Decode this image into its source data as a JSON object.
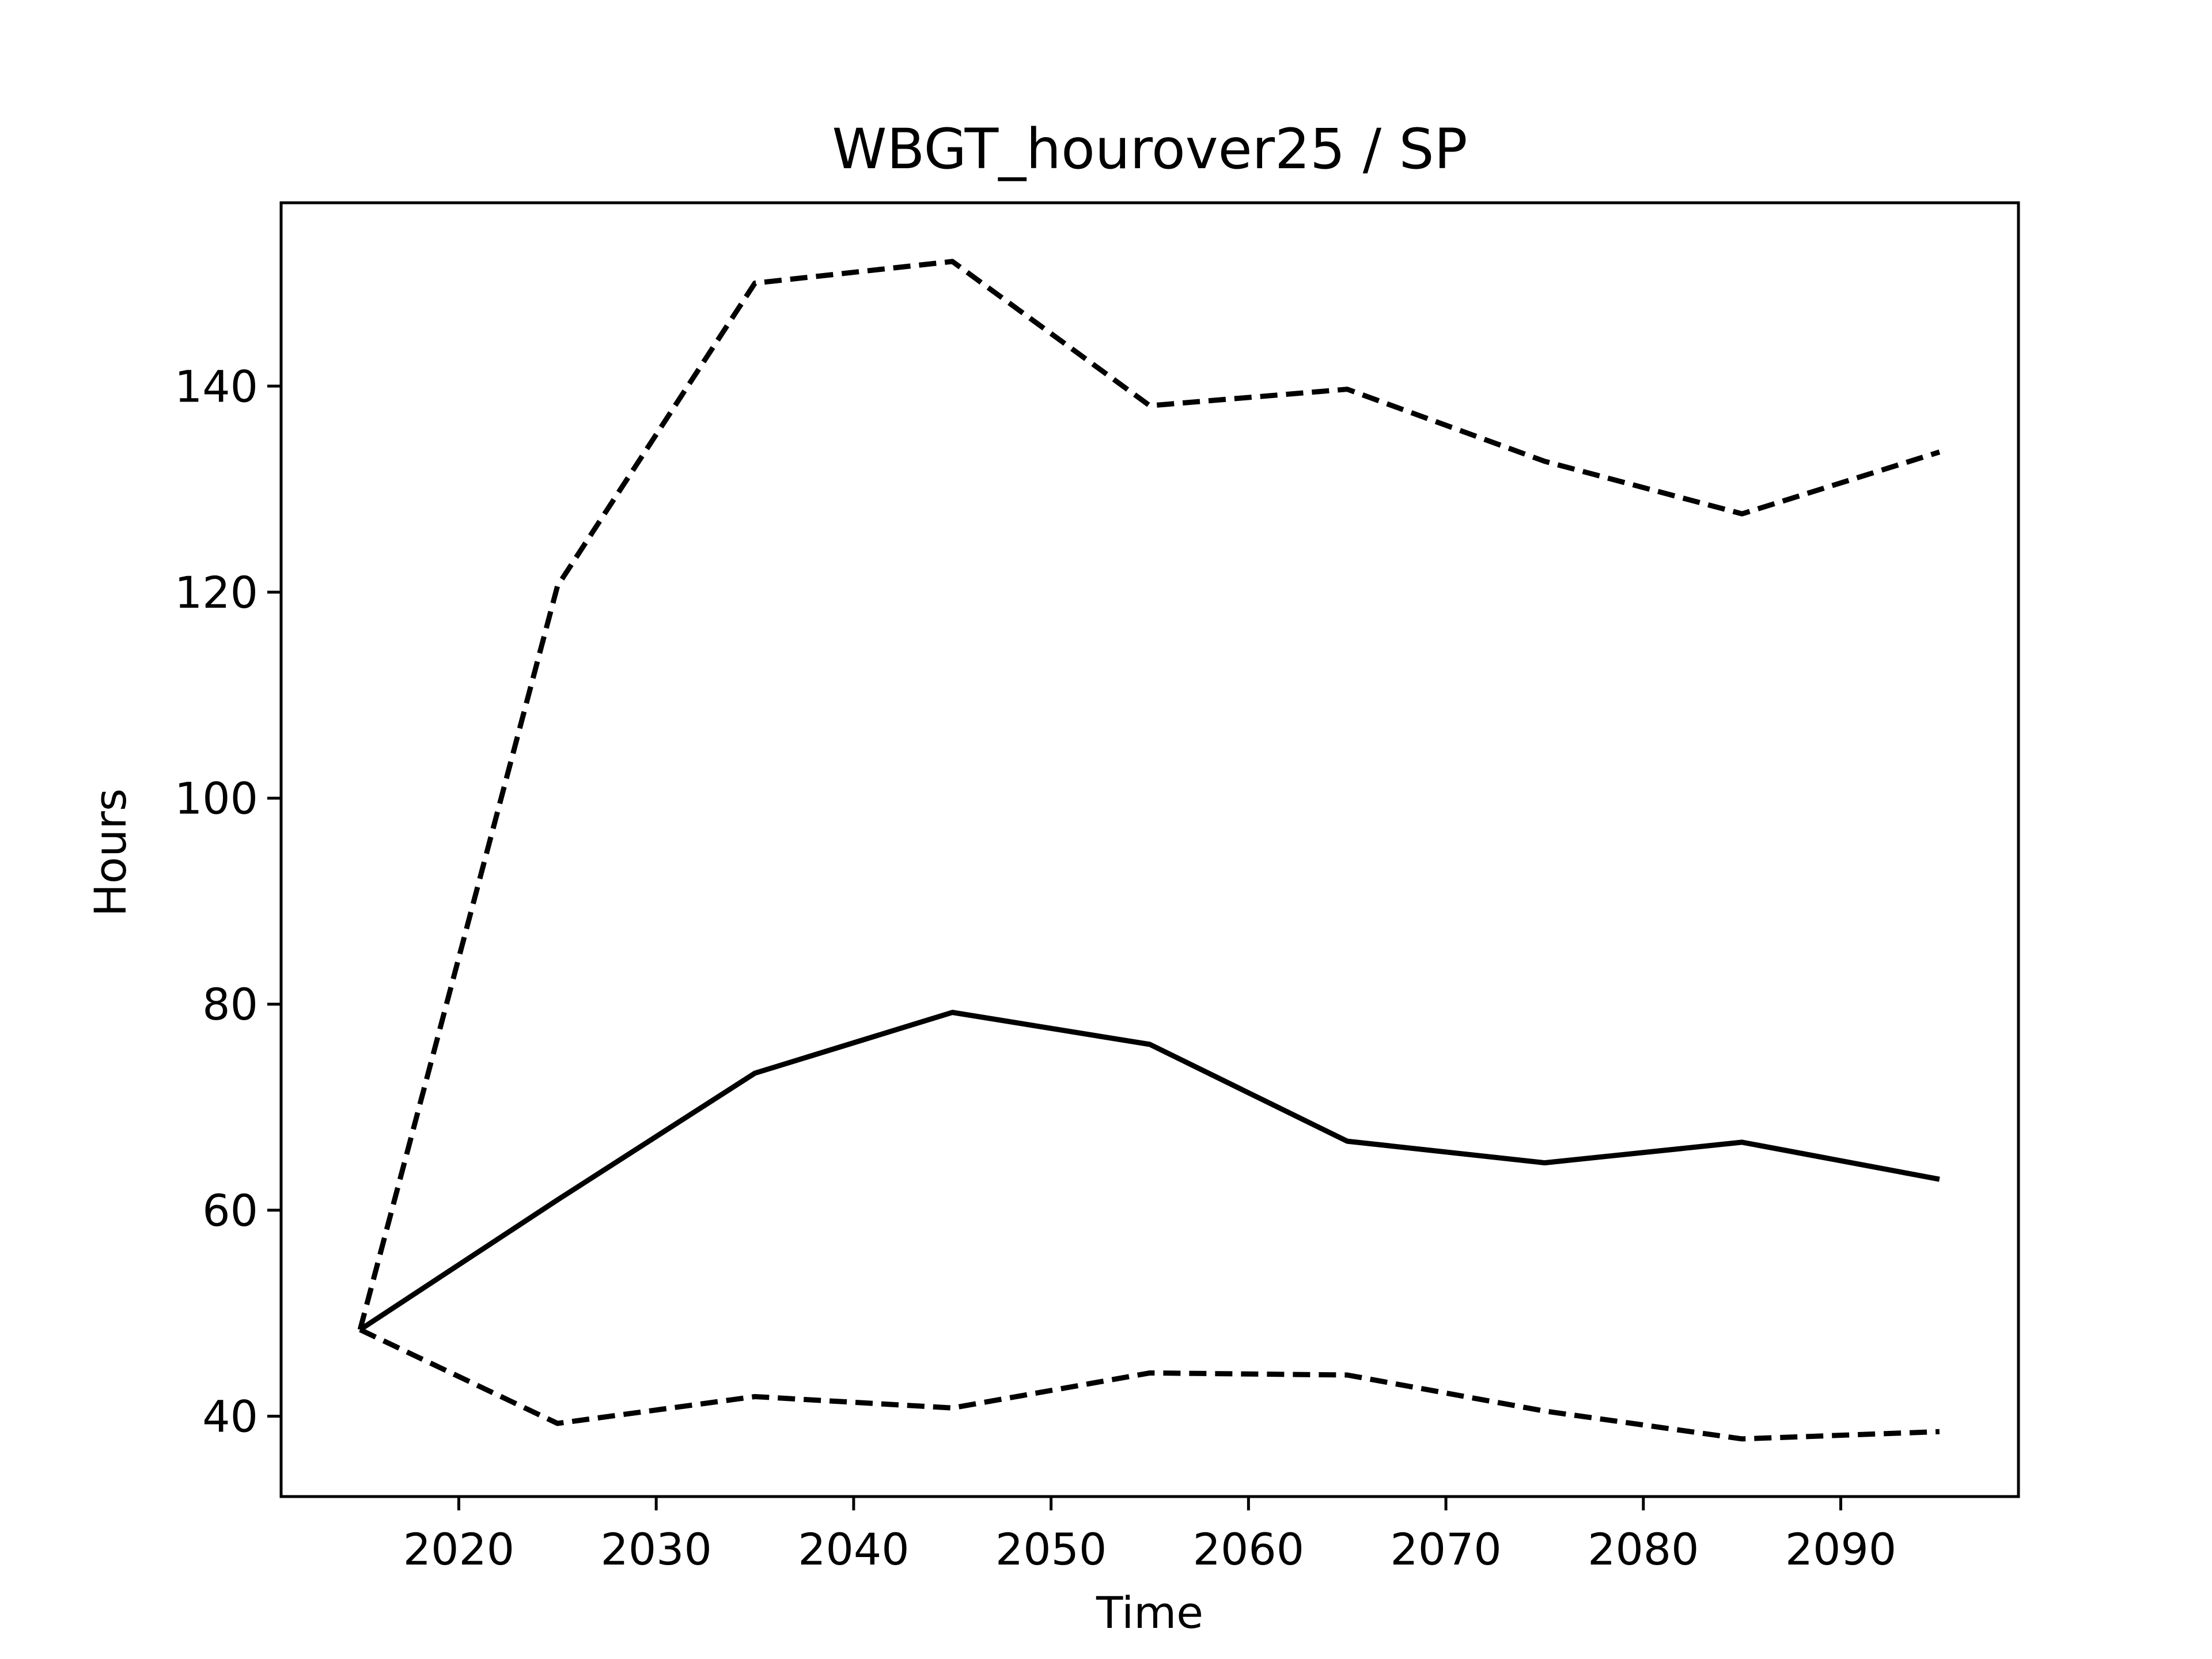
{
  "chart_data": {
    "type": "line",
    "title": "WBGT_hourover25 / SP",
    "xlabel": "Time",
    "ylabel": "Hours",
    "xlim": [
      2011,
      2099
    ],
    "ylim": [
      32.2,
      157.8
    ],
    "xticks": [
      2020,
      2030,
      2040,
      2050,
      2060,
      2070,
      2080,
      2090
    ],
    "yticks": [
      40,
      60,
      80,
      100,
      120,
      140
    ],
    "grid": false,
    "legend": "none",
    "x": [
      2015,
      2025,
      2035,
      2045,
      2055,
      2065,
      2075,
      2085,
      2095
    ],
    "series": [
      {
        "style": "solid",
        "color": "#000000",
        "values": [
          48.4,
          61.0,
          73.3,
          79.2,
          76.1,
          66.7,
          64.6,
          66.6,
          63.0
        ]
      },
      {
        "style": "dashed",
        "color": "#000000",
        "values": [
          48.4,
          120.6,
          150.0,
          152.1,
          138.1,
          139.7,
          132.7,
          127.6,
          133.6
        ]
      },
      {
        "style": "dashed",
        "color": "#000000",
        "values": [
          48.4,
          39.3,
          41.9,
          40.8,
          44.2,
          44.0,
          40.5,
          37.8,
          38.5
        ]
      }
    ]
  }
}
